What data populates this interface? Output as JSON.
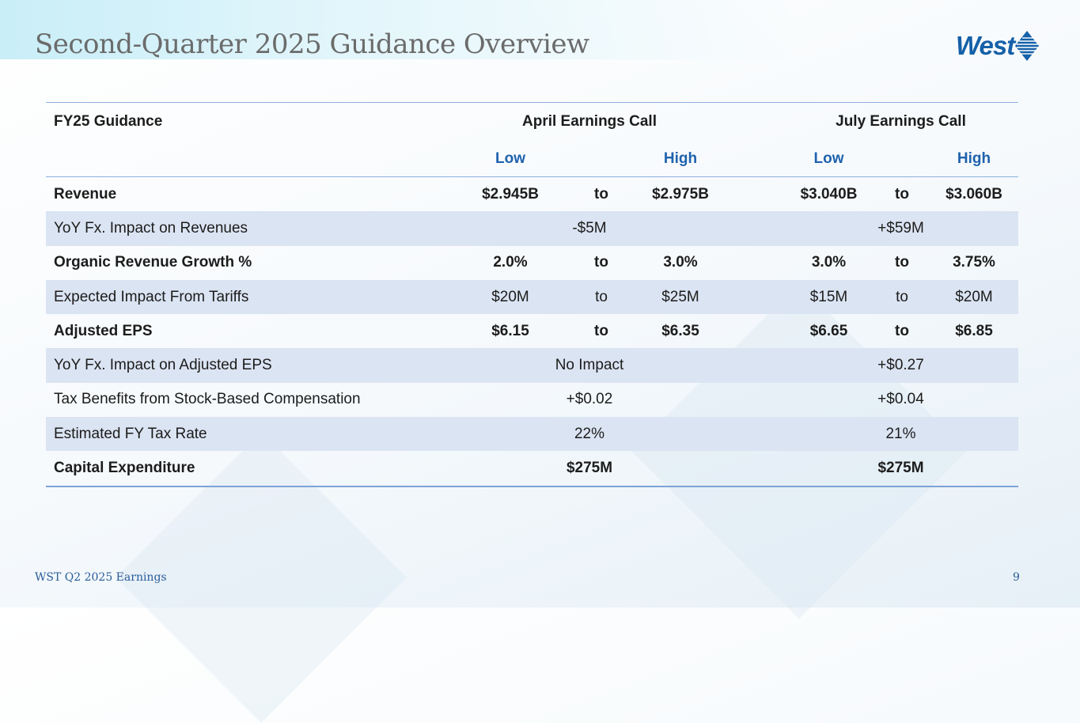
{
  "title": "Second-Quarter 2025 Guidance Overview",
  "logo": "West",
  "table": {
    "header": {
      "label": "FY25 Guidance",
      "april": "April Earnings Call",
      "july": "July Earnings Call"
    },
    "subheader": {
      "april_low": "Low",
      "april_high": "High",
      "july_low": "Low",
      "july_high": "High"
    },
    "range_word": "to",
    "rows": [
      {
        "label": "Revenue",
        "bold": true,
        "april_low": "$2.945B",
        "april_high": "$2.975B",
        "july_low": "$3.040B",
        "july_high": "$3.060B"
      },
      {
        "label": "YoY Fx. Impact on Revenues",
        "bold": false,
        "april": "-$5M",
        "july": "+$59M"
      },
      {
        "label": "Organic Revenue Growth %",
        "bold": true,
        "april_low": "2.0%",
        "april_high": "3.0%",
        "july_low": "3.0%",
        "july_high": "3.75%"
      },
      {
        "label": "Expected Impact From Tariffs",
        "bold": false,
        "april_low": "$20M",
        "april_high": "$25M",
        "july_low": "$15M",
        "july_high": "$20M"
      },
      {
        "label": "Adjusted EPS",
        "bold": true,
        "april_low": "$6.15",
        "april_high": "$6.35",
        "july_low": "$6.65",
        "july_high": "$6.85"
      },
      {
        "label": "YoY Fx. Impact on Adjusted EPS",
        "bold": false,
        "april": "No Impact",
        "july": "+$0.27"
      },
      {
        "label": "Tax Benefits from Stock-Based Compensation",
        "bold": false,
        "april": "+$0.02",
        "july": "+$0.04"
      },
      {
        "label": "Estimated FY Tax Rate",
        "bold": false,
        "april": "22%",
        "july": "21%"
      },
      {
        "label": "Capital Expenditure",
        "bold": true,
        "april": "$275M",
        "july": "$275M"
      }
    ]
  },
  "footer": "WST Q2 2025 Earnings",
  "page_number": "9"
}
